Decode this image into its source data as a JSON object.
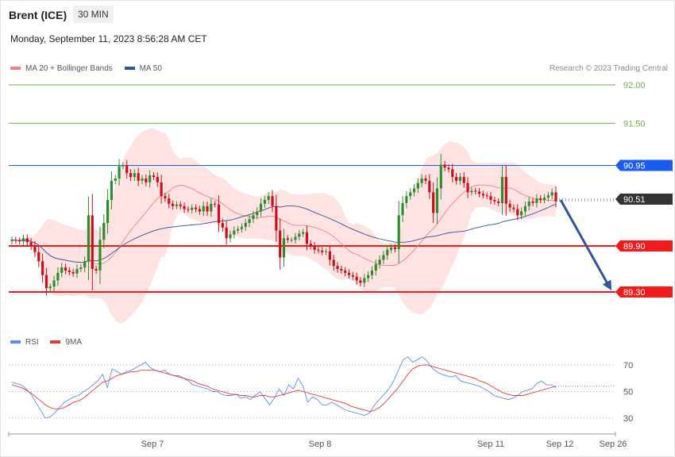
{
  "header": {
    "instrument": "Brent (ICE)",
    "timeframe": "30 MIN",
    "datetime": "Monday, September 11, 2023 8:56:28 AM CET"
  },
  "legend": {
    "ma20_label": "MA 20 + Bollinger Bands",
    "ma50_label": "MA 50",
    "rsi_label": "RSI",
    "rsi_ma_label": "9MA",
    "credit": "Research © 2023 Trading Central"
  },
  "colors": {
    "ma20": "#f08080",
    "band_fill": "#ffe2e2",
    "ma50": "#2f5597",
    "green_level": "#6ab04c",
    "blue_level": "#1a5cf0",
    "red_level": "#f21a1a",
    "bull": "#2e8b2e",
    "bear": "#c8101a",
    "current": "#333333",
    "arrow": "#2f5597",
    "rsi": "#5b8def",
    "rsi_ma": "#e53935"
  },
  "chart_data": {
    "type": "candlestick",
    "ylim": [
      88.85,
      92.1
    ],
    "x_tick_labels": [
      "Sep 7",
      "Sep 8",
      "Sep 11",
      "Sep 12",
      "Sep 26"
    ],
    "levels": [
      {
        "value": 92.0,
        "label": "92.00",
        "kind": "resistance-green"
      },
      {
        "value": 91.5,
        "label": "91.50",
        "kind": "resistance-green"
      },
      {
        "value": 90.95,
        "label": "90.95",
        "kind": "pivot-blue"
      },
      {
        "value": 89.9,
        "label": "89.90",
        "kind": "support-red"
      },
      {
        "value": 89.3,
        "label": "89.30",
        "kind": "support-red"
      }
    ],
    "current_price": {
      "value": 90.51,
      "label": "90.51"
    },
    "forecast_arrow": {
      "from": 90.51,
      "to": 89.3
    },
    "close_series": [
      89.98,
      89.97,
      89.96,
      90.0,
      89.95,
      89.9,
      89.82,
      89.7,
      89.52,
      89.35,
      89.37,
      89.45,
      89.55,
      89.62,
      89.58,
      89.56,
      89.54,
      89.6,
      89.62,
      89.7,
      90.3,
      89.6,
      89.58,
      89.98,
      90.2,
      90.5,
      90.75,
      90.78,
      90.94,
      90.95,
      90.85,
      90.8,
      90.85,
      90.75,
      90.78,
      90.73,
      90.82,
      90.8,
      90.73,
      90.55,
      90.52,
      90.45,
      90.42,
      90.44,
      90.42,
      90.38,
      90.37,
      90.4,
      90.38,
      90.35,
      90.42,
      90.35,
      90.45,
      90.44,
      90.2,
      90.14,
      90.0,
      90.05,
      90.1,
      90.12,
      90.15,
      90.2,
      90.25,
      90.3,
      90.35,
      90.45,
      90.5,
      90.55,
      90.42,
      90.1,
      89.75,
      90.0,
      89.98,
      89.98,
      90.02,
      90.06,
      90.08,
      89.93,
      89.9,
      89.85,
      89.84,
      89.82,
      89.83,
      89.72,
      89.64,
      89.6,
      89.58,
      89.55,
      89.52,
      89.5,
      89.45,
      89.42,
      89.48,
      89.52,
      89.58,
      89.66,
      89.72,
      89.78,
      89.85,
      89.88,
      89.86,
      90.3,
      90.46,
      90.55,
      90.6,
      90.65,
      90.72,
      90.78,
      90.75,
      90.6,
      90.33,
      90.65,
      90.96,
      90.92,
      90.9,
      90.8,
      90.75,
      90.8,
      90.72,
      90.6,
      90.62,
      90.61,
      90.58,
      90.56,
      90.55,
      90.5,
      90.48,
      90.46,
      90.8,
      90.45,
      90.4,
      90.38,
      90.3,
      90.35,
      90.42,
      90.48,
      90.46,
      90.52,
      90.5,
      90.53,
      90.56,
      90.6,
      90.48
    ],
    "rsi": {
      "levels": [
        70,
        50,
        30
      ],
      "ylim": [
        20,
        82
      ],
      "rsi_values": [
        57,
        56,
        55,
        52,
        48,
        42,
        36,
        30,
        31,
        34,
        38,
        42,
        44,
        46,
        47,
        50,
        52,
        55,
        58,
        63,
        53,
        67,
        65,
        63,
        65,
        66,
        68,
        70,
        72,
        68,
        66,
        65,
        66,
        63,
        62,
        62,
        60,
        58,
        55,
        54,
        53,
        52,
        50,
        50,
        48,
        47,
        47,
        48,
        45,
        46,
        44,
        47,
        50,
        45,
        40,
        45,
        52,
        47,
        55,
        52,
        60,
        54,
        42,
        46,
        44,
        40,
        40,
        42,
        40,
        38,
        36,
        35,
        34,
        33,
        32,
        34,
        40,
        44,
        48,
        52,
        58,
        66,
        74,
        76,
        72,
        74,
        76,
        73,
        68,
        65,
        63,
        62,
        61,
        62,
        58,
        57,
        56,
        55,
        54,
        52,
        50,
        47,
        46,
        45,
        44,
        45,
        47,
        50,
        51,
        52,
        56,
        58,
        55,
        55,
        53
      ],
      "ma_values": [
        55,
        54,
        53,
        51,
        49,
        46,
        43,
        40,
        38,
        37,
        37,
        38,
        40,
        42,
        43,
        45,
        48,
        51,
        54,
        57,
        58,
        60,
        62,
        63,
        64,
        65,
        65,
        66,
        66,
        66,
        66,
        65,
        64,
        63,
        62,
        61,
        60,
        59,
        58,
        56,
        55,
        54,
        52,
        51,
        50,
        49,
        48,
        48,
        47,
        47,
        46,
        46,
        47,
        47,
        46,
        46,
        47,
        48,
        49,
        50,
        51,
        50,
        49,
        48,
        47,
        46,
        45,
        44,
        43,
        42,
        41,
        39,
        38,
        37,
        36,
        35,
        36,
        38,
        41,
        45,
        49,
        53,
        58,
        63,
        67,
        69,
        70,
        70,
        69,
        68,
        67,
        66,
        65,
        64,
        63,
        62,
        61,
        60,
        58,
        57,
        55,
        53,
        51,
        49,
        48,
        47,
        47,
        47,
        48,
        49,
        50,
        51,
        52,
        53,
        54
      ]
    }
  }
}
